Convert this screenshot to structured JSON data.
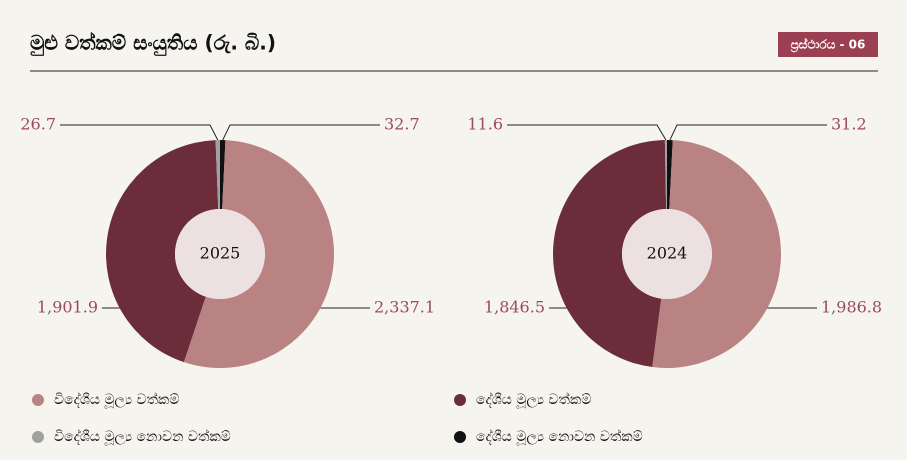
{
  "header": {
    "title": "මුළු වත්කම් සංයුතිය (රු. බි.)",
    "badge": "ප්‍රස්ථාරය - 06"
  },
  "chart_data": [
    {
      "type": "donut",
      "title": "2025",
      "categories": [
        "විදේශීය මූල්‍ය වත්කම්",
        "දේශීය මූල්‍ය වත්කම්",
        "විදේශීය මූල්‍ය නොවන වත්කම්",
        "දේශීය මූල්‍ය නොවන වත්කම්"
      ],
      "values": [
        2337.1,
        1901.9,
        26.7,
        32.7
      ],
      "value_labels": [
        "2,337.1",
        "1,901.9",
        "26.7",
        "32.7"
      ],
      "colors": [
        "#b98283",
        "#6b2d39",
        "#a0a0a0",
        "#111111"
      ]
    },
    {
      "type": "donut",
      "title": "2024",
      "categories": [
        "විදේශීය මූල්‍ය වත්කම්",
        "දේශීය මූල්‍ය වත්කම්",
        "විදේශීය මූල්‍ය නොවන වත්කම්",
        "දේශීය මූල්‍ය නොවන වත්කම්"
      ],
      "values": [
        1986.8,
        1846.5,
        11.6,
        31.2
      ],
      "value_labels": [
        "1,986.8",
        "1,846.5",
        "11.6",
        "31.2"
      ],
      "colors": [
        "#b98283",
        "#6b2d39",
        "#a0a0a0",
        "#111111"
      ]
    }
  ]
}
